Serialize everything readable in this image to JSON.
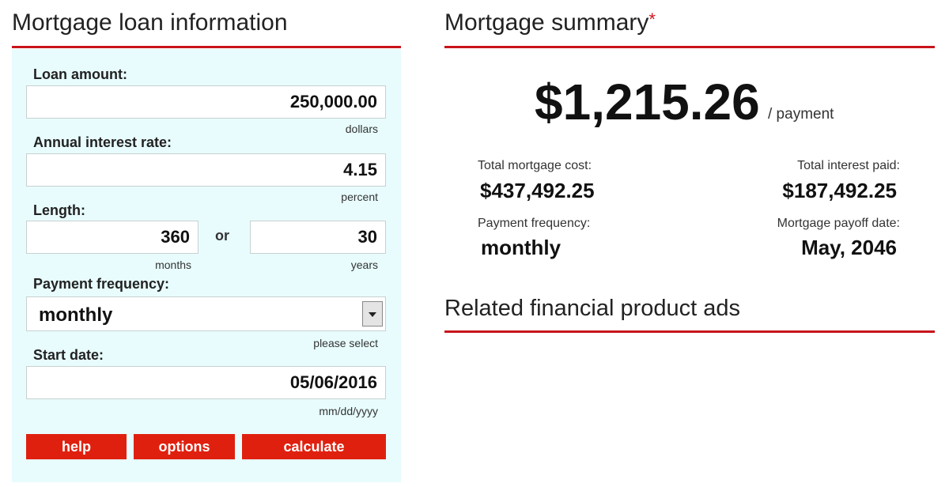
{
  "loan_form": {
    "title": "Mortgage loan information",
    "loan_amount": {
      "label": "Loan amount:",
      "value": "250,000.00",
      "unit": "dollars"
    },
    "interest_rate": {
      "label": "Annual interest rate:",
      "value": "4.15",
      "unit": "percent"
    },
    "length": {
      "label": "Length:",
      "months_value": "360",
      "months_unit": "months",
      "separator": "or",
      "years_value": "30",
      "years_unit": "years"
    },
    "payment_frequency": {
      "label": "Payment frequency:",
      "value": "monthly",
      "hint": "please select"
    },
    "start_date": {
      "label": "Start date:",
      "value": "05/06/2016",
      "unit": "mm/dd/yyyy"
    },
    "buttons": [
      "help",
      "options",
      "calculate"
    ]
  },
  "summary": {
    "title": "Mortgage summary",
    "title_mark": "*",
    "payment": {
      "amount": "$1,215.26",
      "unit": "/ payment"
    },
    "total_cost": {
      "label": "Total mortgage cost:",
      "value": "$437,492.25"
    },
    "total_interest": {
      "label": "Total interest paid:",
      "value": "$187,492.25"
    },
    "frequency": {
      "label": "Payment frequency:",
      "value": "monthly"
    },
    "payoff_date": {
      "label": "Mortgage payoff date:",
      "value": "May, 2046"
    }
  },
  "ads": {
    "title": "Related financial product ads"
  }
}
